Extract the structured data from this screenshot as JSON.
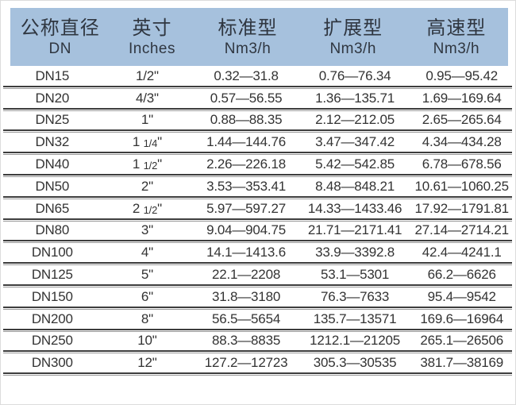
{
  "table": {
    "columns": [
      {
        "zh": "公称直径",
        "sub": "DN"
      },
      {
        "zh": "英寸",
        "sub": "Inches"
      },
      {
        "zh": "标准型",
        "sub": "Nm3/h"
      },
      {
        "zh": "扩展型",
        "sub": "Nm3/h"
      },
      {
        "zh": "高速型",
        "sub": "Nm3/h"
      }
    ],
    "rows": [
      [
        "DN15",
        "1/2\"",
        "0.32—31.8",
        "0.76—76.34",
        "0.95—95.42"
      ],
      [
        "DN20",
        "4/3\"",
        "0.57—56.55",
        "1.36—135.71",
        "1.69—169.64"
      ],
      [
        "DN25",
        "1\"",
        "0.88—88.35",
        "2.12—212.05",
        "2.65—265.64"
      ],
      [
        "DN32",
        "1 1/4\"",
        "1.44—144.76",
        "3.47—347.42",
        "4.34—434.28"
      ],
      [
        "DN40",
        "1 1/2\"",
        "2.26—226.18",
        "5.42—542.85",
        "6.78—678.56"
      ],
      [
        "DN50",
        "2\"",
        "3.53—353.41",
        "8.48—848.21",
        "10.61—1060.25"
      ],
      [
        "DN65",
        "2 1/2\"",
        "5.97—597.27",
        "14.33—1433.46",
        "17.92—1791.81"
      ],
      [
        "DN80",
        "3\"",
        "9.04—904.75",
        "21.71—2171.41",
        "27.14—2714.21"
      ],
      [
        "DN100",
        "4\"",
        "14.1—1413.6",
        "33.9—3392.8",
        "42.4—4241.1"
      ],
      [
        "DN125",
        "5\"",
        "22.1—2208",
        "53.1—5301",
        "66.2—6626"
      ],
      [
        "DN150",
        "6\"",
        "31.8—3180",
        "76.3—7633",
        "95.4—9542"
      ],
      [
        "DN200",
        "8\"",
        "56.5—5654",
        "135.7—13571",
        "169.6—16964"
      ],
      [
        "DN250",
        "10\"",
        "88.3—8835",
        "1212.1—21205",
        "265.1—26506"
      ],
      [
        "DN300",
        "12\"",
        "127.2—12723",
        "305.3—30535",
        "381.7—38169"
      ]
    ]
  },
  "colors": {
    "header_bg": "#a6c1dd",
    "header_text": "#2f3640",
    "body_text": "#333333",
    "rule_dark": "#3d3d3d",
    "rule_light": "#999999"
  }
}
